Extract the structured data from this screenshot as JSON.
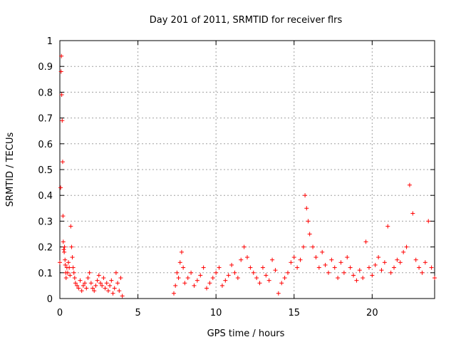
{
  "chart_data": {
    "type": "scatter",
    "title": "Day 201 of 2011, SRMTID for receiver flrs",
    "xlabel": "GPS time / hours",
    "ylabel": "SRMTID / TECUs",
    "xlim": [
      0,
      24
    ],
    "ylim": [
      0,
      1
    ],
    "xticks": [
      0,
      5,
      10,
      15,
      20
    ],
    "yticks": [
      0,
      0.1,
      0.2,
      0.3,
      0.4,
      0.5,
      0.6,
      0.7,
      0.8,
      0.9,
      1
    ],
    "grid": true,
    "marker": "+",
    "color": "#ff0000",
    "series": [
      {
        "name": "SRMTID",
        "x": [
          0.0,
          0.05,
          0.08,
          0.1,
          0.12,
          0.15,
          0.18,
          0.2,
          0.22,
          0.25,
          0.28,
          0.3,
          0.33,
          0.35,
          0.38,
          0.4,
          0.45,
          0.5,
          0.55,
          0.6,
          0.65,
          0.7,
          0.75,
          0.8,
          0.85,
          0.9,
          0.95,
          1.0,
          1.1,
          1.2,
          1.3,
          1.4,
          1.5,
          1.6,
          1.7,
          1.8,
          1.9,
          2.0,
          2.1,
          2.2,
          2.3,
          2.4,
          2.5,
          2.6,
          2.7,
          2.8,
          2.9,
          3.0,
          3.1,
          3.2,
          3.3,
          3.4,
          3.5,
          3.6,
          3.7,
          3.8,
          3.9,
          4.0,
          7.3,
          7.4,
          7.5,
          7.6,
          7.7,
          7.8,
          7.9,
          8.0,
          8.2,
          8.4,
          8.6,
          8.8,
          9.0,
          9.2,
          9.4,
          9.6,
          9.8,
          10.0,
          10.2,
          10.4,
          10.6,
          10.8,
          11.0,
          11.2,
          11.4,
          11.6,
          11.8,
          12.0,
          12.2,
          12.4,
          12.6,
          12.8,
          13.0,
          13.2,
          13.4,
          13.6,
          13.8,
          14.0,
          14.2,
          14.4,
          14.6,
          14.8,
          15.0,
          15.2,
          15.4,
          15.6,
          15.7,
          15.8,
          15.9,
          16.0,
          16.2,
          16.4,
          16.6,
          16.8,
          17.0,
          17.2,
          17.4,
          17.6,
          17.8,
          18.0,
          18.2,
          18.4,
          18.6,
          18.8,
          19.0,
          19.2,
          19.4,
          19.6,
          19.8,
          20.0,
          20.2,
          20.4,
          20.6,
          20.8,
          21.0,
          21.2,
          21.4,
          21.6,
          21.8,
          22.0,
          22.2,
          22.4,
          22.6,
          22.8,
          23.0,
          23.2,
          23.4,
          23.6,
          23.8,
          24.0
        ],
        "y": [
          0.14,
          0.43,
          0.88,
          0.94,
          0.79,
          0.69,
          0.53,
          0.32,
          0.22,
          0.19,
          0.18,
          0.2,
          0.15,
          0.13,
          0.1,
          0.08,
          0.12,
          0.1,
          0.14,
          0.12,
          0.09,
          0.28,
          0.2,
          0.16,
          0.12,
          0.1,
          0.08,
          0.06,
          0.05,
          0.04,
          0.07,
          0.03,
          0.05,
          0.06,
          0.04,
          0.08,
          0.1,
          0.06,
          0.04,
          0.03,
          0.05,
          0.07,
          0.09,
          0.06,
          0.05,
          0.08,
          0.04,
          0.06,
          0.03,
          0.05,
          0.07,
          0.02,
          0.04,
          0.1,
          0.06,
          0.03,
          0.08,
          0.01,
          0.02,
          0.05,
          0.1,
          0.08,
          0.14,
          0.18,
          0.12,
          0.06,
          0.08,
          0.1,
          0.05,
          0.07,
          0.09,
          0.12,
          0.04,
          0.06,
          0.08,
          0.1,
          0.12,
          0.05,
          0.07,
          0.09,
          0.13,
          0.1,
          0.08,
          0.15,
          0.2,
          0.16,
          0.12,
          0.1,
          0.08,
          0.06,
          0.12,
          0.09,
          0.07,
          0.15,
          0.11,
          0.02,
          0.06,
          0.08,
          0.1,
          0.14,
          0.16,
          0.12,
          0.15,
          0.2,
          0.4,
          0.35,
          0.3,
          0.25,
          0.2,
          0.16,
          0.12,
          0.18,
          0.13,
          0.1,
          0.15,
          0.12,
          0.08,
          0.14,
          0.1,
          0.16,
          0.12,
          0.09,
          0.07,
          0.11,
          0.08,
          0.22,
          0.12,
          0.09,
          0.13,
          0.16,
          0.11,
          0.14,
          0.28,
          0.1,
          0.12,
          0.15,
          0.14,
          0.18,
          0.2,
          0.44,
          0.33,
          0.15,
          0.12,
          0.1,
          0.14,
          0.3,
          0.12,
          0.08
        ]
      }
    ]
  }
}
